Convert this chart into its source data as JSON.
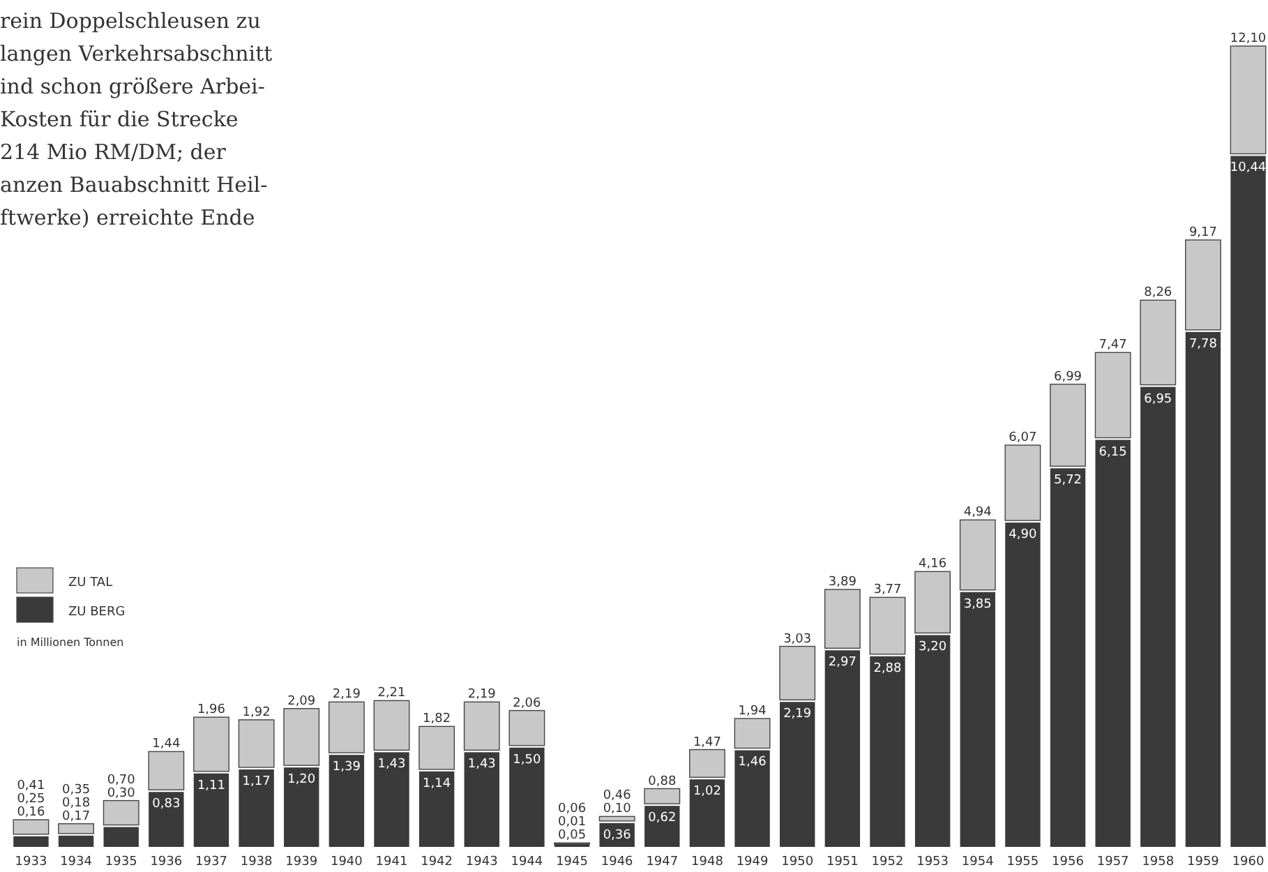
{
  "chart_data": {
    "type": "bar",
    "stacked": true,
    "relative": false,
    "categories": [
      "1933",
      "1934",
      "1935",
      "1936",
      "1937",
      "1938",
      "1939",
      "1940",
      "1941",
      "1942",
      "1943",
      "1944",
      "1945",
      "1946",
      "1947",
      "1948",
      "1949",
      "1950",
      "1951",
      "1952",
      "1953",
      "1954",
      "1955",
      "1956",
      "1957",
      "1958",
      "1959",
      "1960"
    ],
    "series": [
      {
        "name": "ZU BERG",
        "color": "#3a3a3a",
        "values": [
          0.16,
          0.17,
          0.3,
          0.83,
          1.11,
          1.17,
          1.2,
          1.39,
          1.43,
          1.14,
          1.43,
          1.5,
          0.05,
          0.36,
          0.62,
          1.02,
          1.46,
          2.19,
          2.97,
          2.88,
          3.2,
          3.85,
          4.9,
          5.72,
          6.15,
          6.95,
          7.78,
          10.44
        ],
        "value_labels": [
          "0,16",
          "0,17",
          "0,30",
          "0,83",
          "1,11",
          "1,17",
          "1,20",
          "1,39",
          "1,43",
          "1,14",
          "1,43",
          "1,50",
          "0,05",
          "0,36",
          "0,62",
          "1,02",
          "1,46",
          "2,19",
          "2,97",
          "2,88",
          "3,20",
          "3,85",
          "4,90",
          "5,72",
          "6,15",
          "6,95",
          "7,78",
          "10,44"
        ]
      },
      {
        "name": "ZU TAL",
        "color": "#c8c8c8",
        "values": [
          0.25,
          0.18,
          0.4,
          0.61,
          0.85,
          0.75,
          0.89,
          0.8,
          0.78,
          0.68,
          0.76,
          0.56,
          0.01,
          0.1,
          0.26,
          0.45,
          0.48,
          0.84,
          0.92,
          0.89,
          0.96,
          1.09,
          1.17,
          1.27,
          1.32,
          1.31,
          1.39,
          1.66
        ],
        "value_labels": [
          "0,25",
          "0,18",
          null,
          null,
          null,
          null,
          null,
          null,
          null,
          null,
          null,
          null,
          "0,01",
          "0,10",
          null,
          null,
          null,
          null,
          null,
          null,
          null,
          null,
          null,
          null,
          null,
          null,
          null,
          null
        ]
      }
    ],
    "totals": [
      "0,41",
      "0,35",
      "0,70",
      "1,44",
      "1,96",
      "1,92",
      "2,09",
      "2,19",
      "2,21",
      "1,82",
      "2,19",
      "2,06",
      "0,06",
      "0,46",
      "0,88",
      "1,47",
      "1,94",
      "3,03",
      "3,89",
      "3,77",
      "4,16",
      "4,94",
      "6,07",
      "6,99",
      "7,47",
      "8,26",
      "9,17",
      "12,10"
    ],
    "legend": "left",
    "legend_title": "in Millionen Tonnen",
    "annotations": [
      "rein Doppelschleusen zu",
      "langen Verkehrsabschnitt",
      "ind schon größere Arbei-",
      "Kosten für die Strecke",
      "214 Mio RM/DM; der",
      "anzen Bauabschnitt Heil-",
      "ftwerke) erreichte Ende"
    ]
  }
}
